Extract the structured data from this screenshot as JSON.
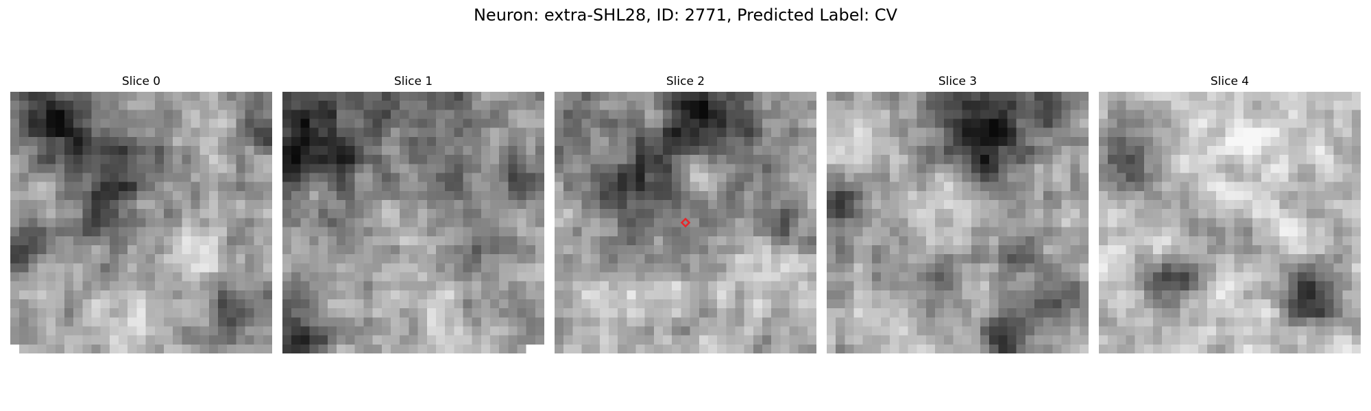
{
  "figure": {
    "title": "Neuron: extra-SHL28, ID: 2771, Predicted Label: CV"
  },
  "slices": [
    {
      "label": "Slice 0",
      "seed": 11,
      "base": 0.62,
      "blobs": [
        {
          "u": 0.12,
          "v": 0.08,
          "r": 0.09,
          "s": -0.42
        },
        {
          "u": 0.28,
          "v": 0.2,
          "r": 0.1,
          "s": -0.25
        },
        {
          "u": 0.43,
          "v": 0.37,
          "r": 0.14,
          "s": -0.32
        },
        {
          "u": 0.5,
          "v": 0.45,
          "r": 0.05,
          "s": 0.2
        },
        {
          "u": 0.95,
          "v": 0.15,
          "r": 0.07,
          "s": -0.38
        },
        {
          "u": 0.8,
          "v": 0.12,
          "r": 0.09,
          "s": 0.15
        },
        {
          "u": 0.05,
          "v": 0.58,
          "r": 0.07,
          "s": -0.28
        },
        {
          "u": 0.85,
          "v": 0.82,
          "r": 0.07,
          "s": -0.35
        },
        {
          "u": 0.35,
          "v": 0.68,
          "r": 0.08,
          "s": -0.15
        },
        {
          "u": 0.7,
          "v": 0.62,
          "r": 0.08,
          "s": 0.18
        },
        {
          "u": 0.45,
          "v": 0.85,
          "r": 0.12,
          "s": 0.18
        }
      ],
      "blanks": [
        {
          "col": 0,
          "row": 28
        }
      ],
      "marker": false
    },
    {
      "label": "Slice 1",
      "seed": 23,
      "base": 0.6,
      "blobs": [
        {
          "u": 0.2,
          "v": 0.1,
          "r": 0.18,
          "s": -0.42
        },
        {
          "u": 0.25,
          "v": 0.08,
          "r": 0.07,
          "s": 0.2
        },
        {
          "u": 0.65,
          "v": 0.1,
          "r": 0.1,
          "s": -0.18
        },
        {
          "u": 0.92,
          "v": 0.35,
          "r": 0.06,
          "s": -0.3
        },
        {
          "u": 0.65,
          "v": 0.35,
          "r": 0.06,
          "s": -0.25
        },
        {
          "u": 0.05,
          "v": 0.25,
          "r": 0.08,
          "s": -0.2
        },
        {
          "u": 0.05,
          "v": 0.95,
          "r": 0.08,
          "s": -0.4
        },
        {
          "u": 0.72,
          "v": 0.62,
          "r": 0.07,
          "s": -0.22
        },
        {
          "u": 0.55,
          "v": 0.85,
          "r": 0.12,
          "s": 0.15
        },
        {
          "u": 0.45,
          "v": 0.55,
          "r": 0.1,
          "s": 0.12
        }
      ],
      "blanks": [
        {
          "col": 27,
          "row": 28
        },
        {
          "col": 28,
          "row": 28
        }
      ],
      "marker": false
    },
    {
      "label": "Slice 2",
      "seed": 37,
      "base": 0.64,
      "blobs": [
        {
          "u": 0.55,
          "v": 0.08,
          "r": 0.08,
          "s": -0.45
        },
        {
          "u": 0.65,
          "v": 0.15,
          "r": 0.14,
          "s": -0.25
        },
        {
          "u": 0.33,
          "v": 0.35,
          "r": 0.15,
          "s": -0.33
        },
        {
          "u": 0.3,
          "v": 0.35,
          "r": 0.06,
          "s": -0.12
        },
        {
          "u": 0.88,
          "v": 0.48,
          "r": 0.07,
          "s": -0.28
        },
        {
          "u": 0.05,
          "v": 0.15,
          "r": 0.07,
          "s": -0.25
        },
        {
          "u": 0.6,
          "v": 0.5,
          "r": 0.06,
          "s": -0.2
        },
        {
          "u": 0.55,
          "v": 0.3,
          "r": 0.05,
          "s": 0.25
        },
        {
          "u": 0.8,
          "v": 0.7,
          "r": 0.12,
          "s": 0.15
        },
        {
          "u": 0.2,
          "v": 0.85,
          "r": 0.12,
          "s": 0.12
        }
      ],
      "blanks": [],
      "marker": true
    },
    {
      "label": "Slice 3",
      "seed": 53,
      "base": 0.64,
      "blobs": [
        {
          "u": 0.62,
          "v": 0.18,
          "r": 0.1,
          "s": -0.45
        },
        {
          "u": 0.55,
          "v": 0.12,
          "r": 0.16,
          "s": -0.2
        },
        {
          "u": 0.05,
          "v": 0.45,
          "r": 0.07,
          "s": -0.35
        },
        {
          "u": 0.85,
          "v": 0.05,
          "r": 0.07,
          "s": -0.3
        },
        {
          "u": 0.4,
          "v": 0.75,
          "r": 0.06,
          "s": -0.22
        },
        {
          "u": 0.72,
          "v": 0.65,
          "r": 0.05,
          "s": -0.3
        },
        {
          "u": 0.68,
          "v": 0.92,
          "r": 0.06,
          "s": -0.4
        },
        {
          "u": 0.9,
          "v": 0.8,
          "r": 0.06,
          "s": -0.3
        },
        {
          "u": 0.15,
          "v": 0.15,
          "r": 0.09,
          "s": 0.2
        },
        {
          "u": 0.45,
          "v": 0.4,
          "r": 0.1,
          "s": 0.15
        },
        {
          "u": 0.25,
          "v": 0.85,
          "r": 0.09,
          "s": 0.15
        }
      ],
      "blanks": [],
      "marker": false
    },
    {
      "label": "Slice 4",
      "seed": 71,
      "base": 0.74,
      "blobs": [
        {
          "u": 0.08,
          "v": 0.25,
          "r": 0.1,
          "s": -0.38
        },
        {
          "u": 0.28,
          "v": 0.73,
          "r": 0.07,
          "s": -0.45
        },
        {
          "u": 0.82,
          "v": 0.78,
          "r": 0.08,
          "s": -0.55
        },
        {
          "u": 0.84,
          "v": 0.82,
          "r": 0.05,
          "s": -0.15
        },
        {
          "u": 0.35,
          "v": 0.45,
          "r": 0.07,
          "s": -0.15
        },
        {
          "u": 0.55,
          "v": 0.6,
          "r": 0.06,
          "s": -0.15
        },
        {
          "u": 0.5,
          "v": 0.2,
          "r": 0.14,
          "s": 0.12
        },
        {
          "u": 0.6,
          "v": 0.85,
          "r": 0.1,
          "s": 0.1
        }
      ],
      "blanks": [],
      "marker": false
    }
  ],
  "marker": {
    "color": "#e8252a",
    "slice_index": 2,
    "u": 0.5,
    "v": 0.5
  }
}
